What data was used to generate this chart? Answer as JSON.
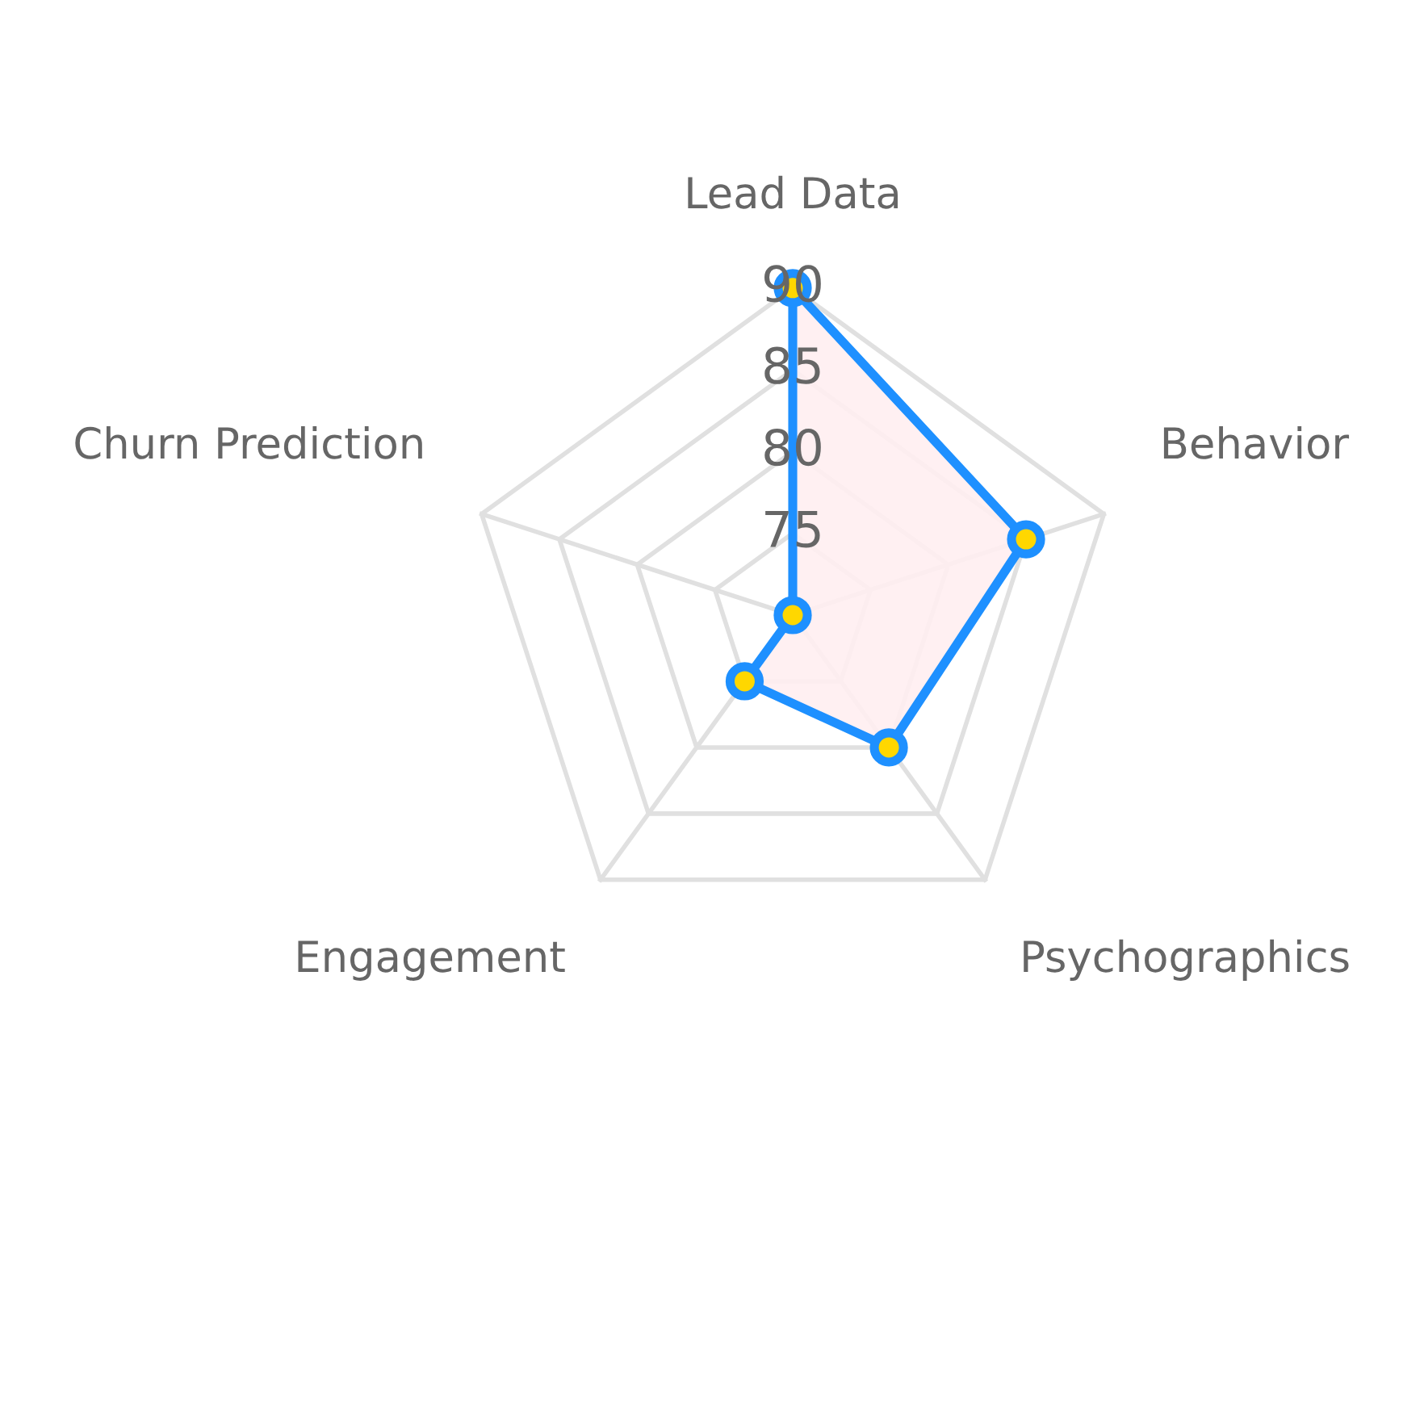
{
  "chart_data": {
    "type": "radar",
    "categories": [
      "Lead Data",
      "Behavior",
      "Psychographics",
      "Engagement",
      "Churn Prediction"
    ],
    "series": [
      {
        "color": "#1e90ff",
        "values": [
          90,
          85,
          80,
          75,
          70
        ]
      }
    ],
    "ylim": [
      70,
      90
    ],
    "yticks": [
      75,
      80,
      85,
      90
    ],
    "grid": true,
    "marker": "circle"
  }
}
